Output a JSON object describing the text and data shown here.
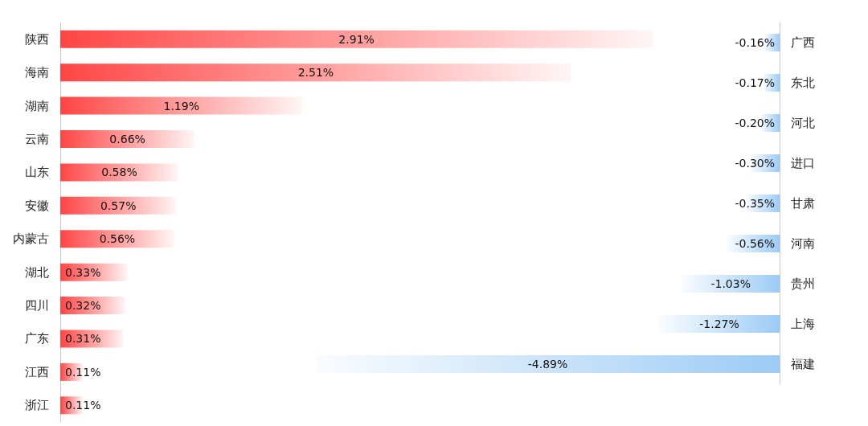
{
  "chart_data": [
    {
      "type": "bar",
      "orientation": "horizontal",
      "categories": [
        "陕西",
        "海南",
        "湖南",
        "云南",
        "山东",
        "安徽",
        "内蒙古",
        "湖北",
        "四川",
        "广东",
        "江西",
        "浙江"
      ],
      "values": [
        2.91,
        2.51,
        1.19,
        0.66,
        0.58,
        0.57,
        0.56,
        0.33,
        0.32,
        0.31,
        0.11,
        0.11
      ],
      "color": "#ff4545",
      "value_labels": [
        "2.91%",
        "2.51%",
        "1.19%",
        "0.66%",
        "0.58%",
        "0.57%",
        "0.56%",
        "0.33%",
        "0.32%",
        "0.31%",
        "0.11%",
        "0.11%"
      ]
    },
    {
      "type": "bar",
      "orientation": "horizontal",
      "categories": [
        "广西",
        "东北",
        "河北",
        "进口",
        "甘肃",
        "河南",
        "贵州",
        "上海",
        "福建"
      ],
      "values": [
        -0.16,
        -0.17,
        -0.2,
        -0.3,
        -0.35,
        -0.56,
        -1.03,
        -1.27,
        -4.89
      ],
      "color": "#9ccbf5",
      "value_labels": [
        "-0.16%",
        "-0.17%",
        "-0.20%",
        "-0.30%",
        "-0.35%",
        "-0.56%",
        "-1.03%",
        "-1.27%",
        "-4.89%"
      ]
    }
  ]
}
